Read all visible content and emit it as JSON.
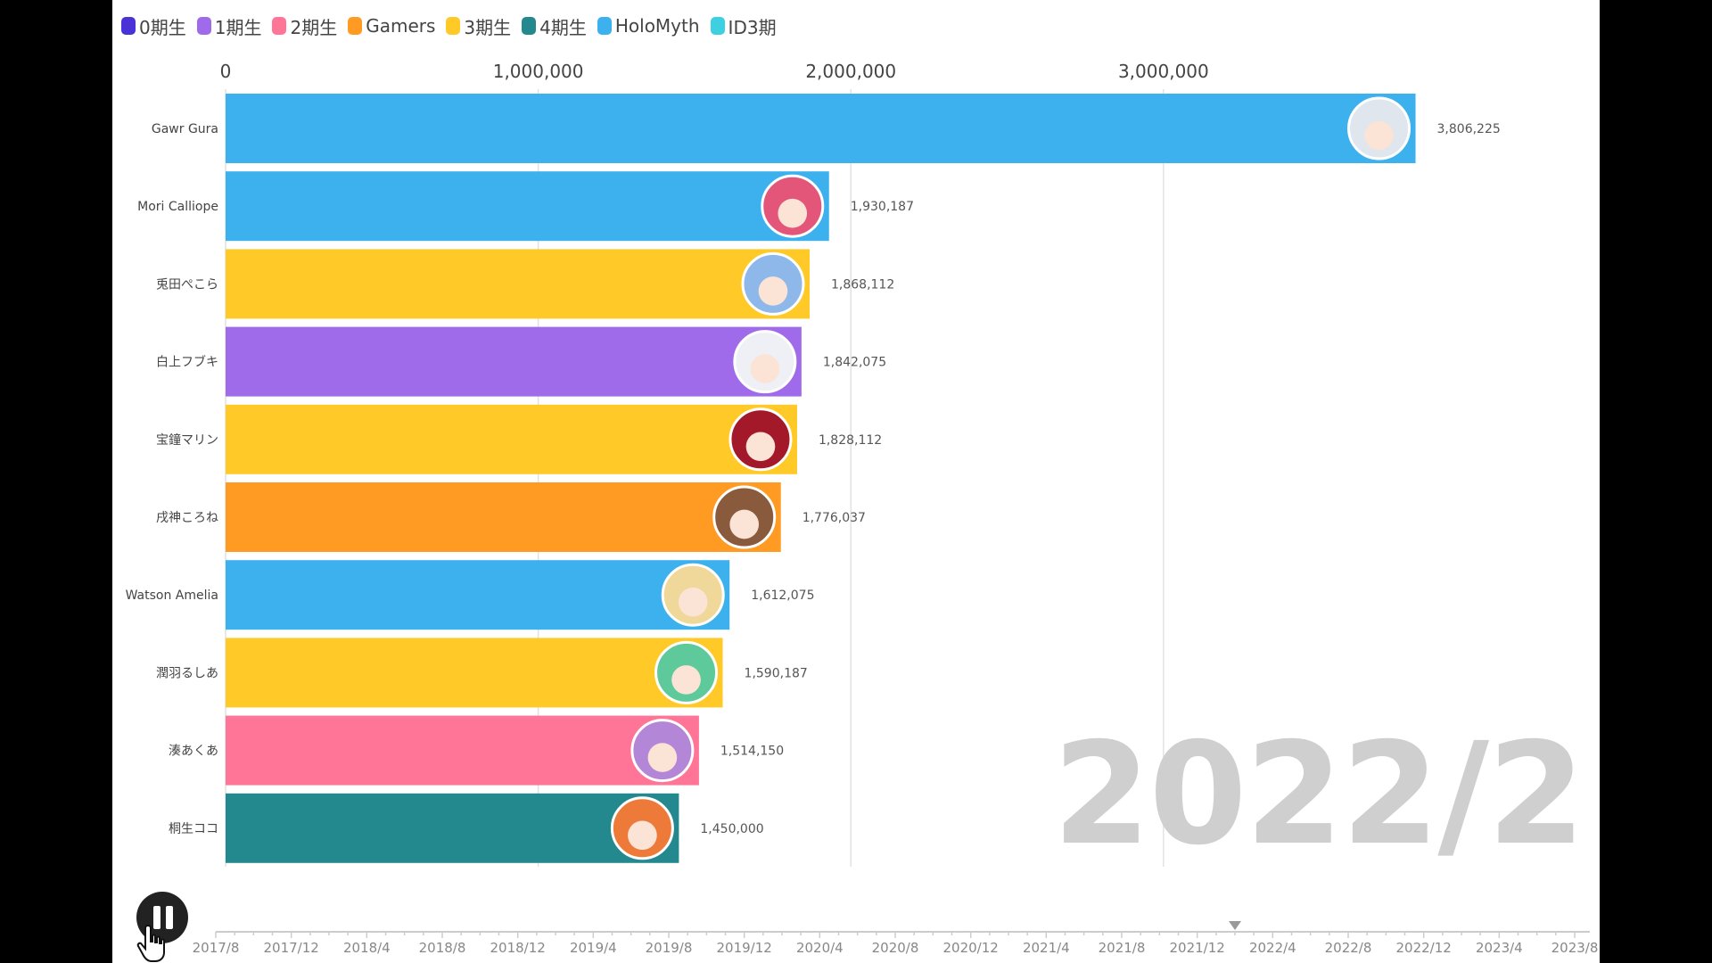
{
  "legend": [
    {
      "label": "0期生",
      "color": "#4a33d6"
    },
    {
      "label": "1期生",
      "color": "#a06bea"
    },
    {
      "label": "2期生",
      "color": "#ff7597"
    },
    {
      "label": "Gamers",
      "color": "#ff9a22"
    },
    {
      "label": "3期生",
      "color": "#ffca28"
    },
    {
      "label": "4期生",
      "color": "#24888f"
    },
    {
      "label": "HoloMyth",
      "color": "#3cb1ee"
    },
    {
      "label": "ID3期",
      "color": "#3dd0e0"
    }
  ],
  "year_label": "2022/2",
  "chart_data": {
    "type": "bar",
    "orientation": "horizontal",
    "title": "",
    "xlabel": "",
    "ylabel": "",
    "xlim": [
      0,
      4050000
    ],
    "x_ticks": [
      0,
      1000000,
      2000000,
      3000000
    ],
    "x_tick_labels": [
      "0",
      "1,000,000",
      "2,000,000",
      "3,000,000"
    ],
    "grid": true,
    "legend_position": "top-left",
    "categories": [
      "Gawr Gura",
      "Mori Calliope",
      "兎田ぺこら",
      "白上フブキ",
      "宝鐘マリン",
      "戌神ころね",
      "Watson Amelia",
      "潤羽るしあ",
      "湊あくあ",
      "桐生ココ"
    ],
    "values": [
      3806225,
      1930187,
      1868112,
      1842075,
      1828112,
      1776037,
      1612075,
      1590187,
      1514150,
      1450000
    ],
    "value_labels": [
      "3,806,225",
      "1,930,187",
      "1,868,112",
      "1,842,075",
      "1,828,112",
      "1,776,037",
      "1,612,075",
      "1,590,187",
      "1,514,150",
      "1,450,000"
    ],
    "groups": [
      "HoloMyth",
      "HoloMyth",
      "3期生",
      "1期生",
      "3期生",
      "Gamers",
      "HoloMyth",
      "3期生",
      "2期生",
      "4期生"
    ],
    "avatar_colors": [
      "#dfe6ee",
      "#e3567a",
      "#8fb8ea",
      "#eef0f6",
      "#a3192a",
      "#8a5a3c",
      "#f0d79a",
      "#5ec99a",
      "#b486d8",
      "#ee7a3a"
    ]
  },
  "timeline": {
    "labels": [
      "2017/8",
      "2017/12",
      "2018/4",
      "2018/8",
      "2018/12",
      "2019/4",
      "2019/8",
      "2019/12",
      "2020/4",
      "2020/8",
      "2020/12",
      "2021/4",
      "2021/8",
      "2021/12",
      "2022/4",
      "2022/8",
      "2022/12",
      "2023/4",
      "2023/8"
    ],
    "current": "2022/2"
  }
}
